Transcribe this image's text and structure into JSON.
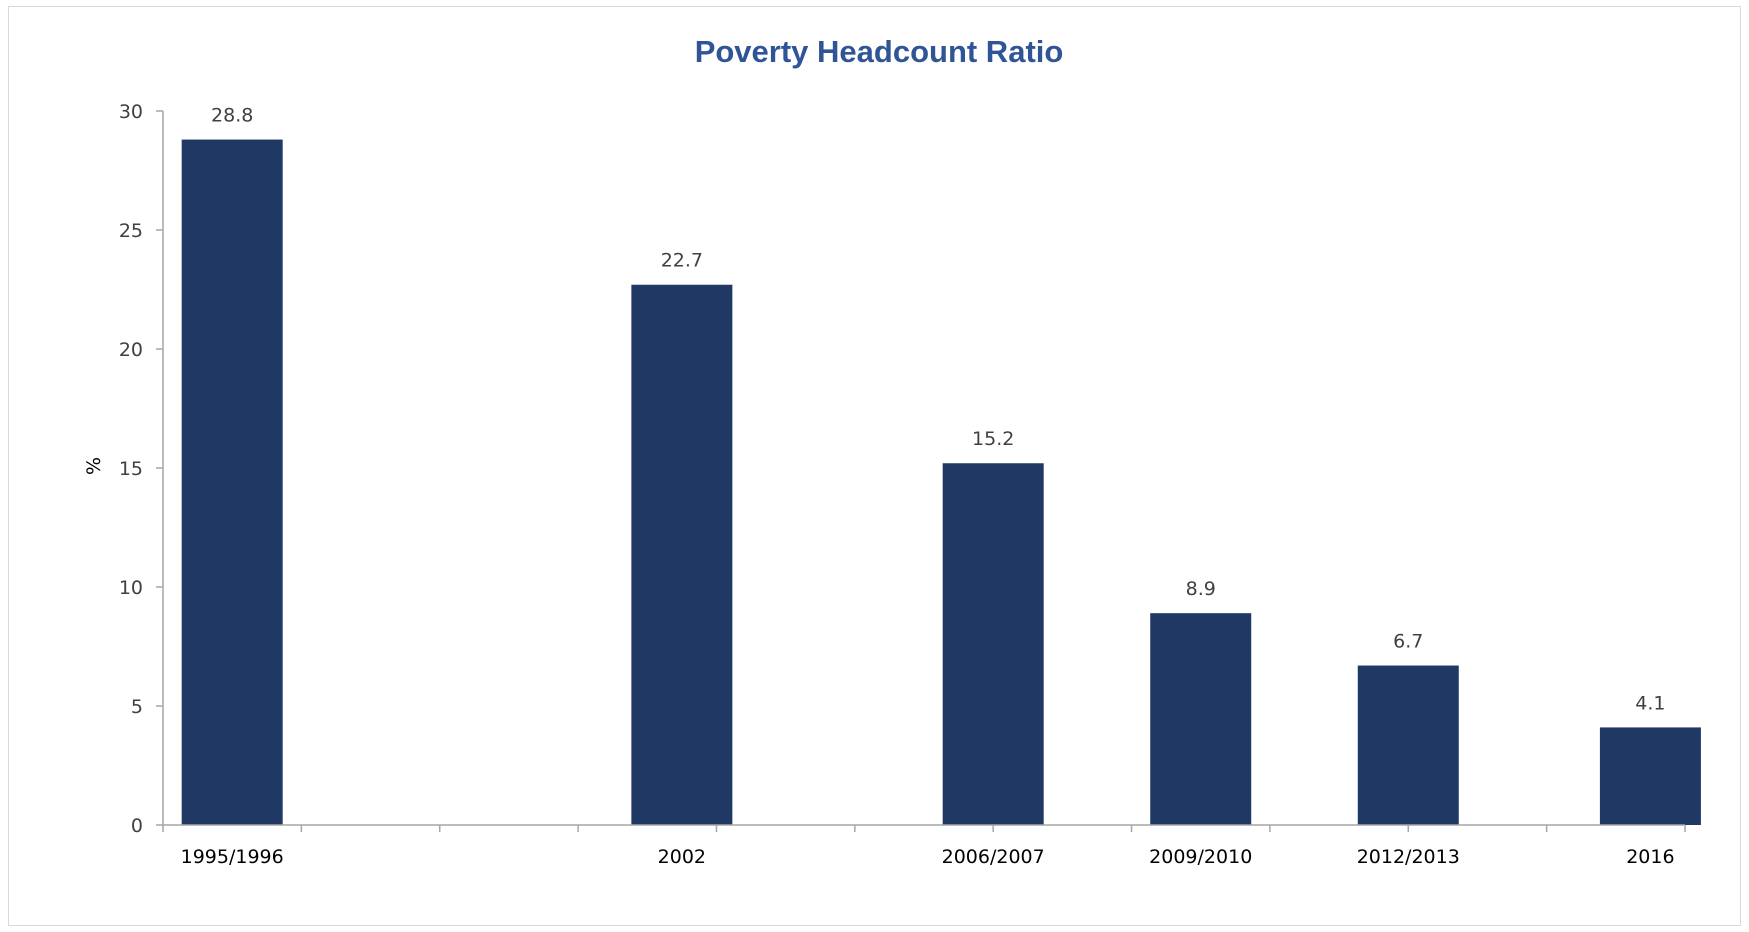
{
  "chart_data": {
    "type": "bar",
    "title": "Poverty Headcount Ratio",
    "xlabel": "",
    "ylabel": "%",
    "ylim": [
      0,
      30
    ],
    "yticks": [
      0,
      5,
      10,
      15,
      20,
      25,
      30
    ],
    "grid": false,
    "legend": "none",
    "bar_color": "#1f3864",
    "x_axis_type": "date",
    "x_axis_range": [
      1995,
      2017
    ],
    "categories": [
      "1995/1996",
      "2002",
      "2006/2007",
      "2009/2010",
      "2012/2013",
      "2016"
    ],
    "x": [
      1995.5,
      2002,
      2006.5,
      2009.5,
      2012.5,
      2016
    ],
    "values": [
      28.8,
      22.7,
      15.2,
      8.9,
      6.7,
      4.1
    ],
    "data_labels": [
      "28.8",
      "22.7",
      "15.2",
      "8.9",
      "6.7",
      "4.1"
    ]
  }
}
